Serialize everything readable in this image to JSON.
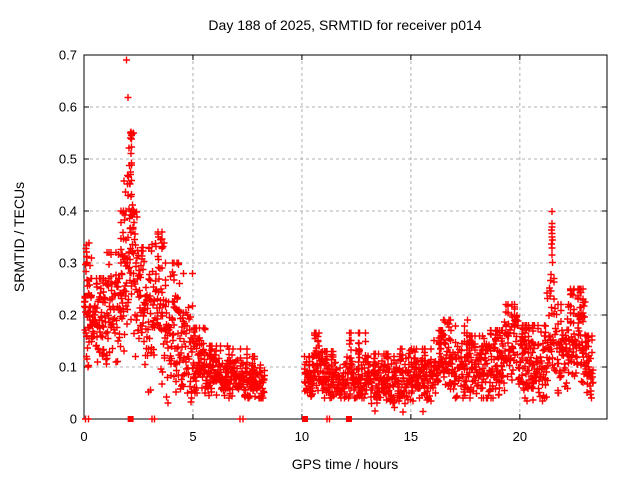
{
  "chart_data": {
    "type": "scatter",
    "title": "Day 188 of 2025, SRMTID for receiver p014",
    "xlabel": "GPS time / hours",
    "ylabel": "SRMTID / TECUs",
    "xlim": [
      0,
      24
    ],
    "ylim": [
      0,
      0.7
    ],
    "xticks": [
      0,
      5,
      10,
      15,
      20
    ],
    "xtick_labels": [
      "0",
      "5",
      "10",
      "15",
      "20"
    ],
    "yticks": [
      0,
      0.1,
      0.2,
      0.3,
      0.4,
      0.5,
      0.6,
      0.7
    ],
    "ytick_labels": [
      "0",
      "0.1",
      "0.2",
      "0.3",
      "0.4",
      "0.5",
      "0.6",
      "0.7"
    ],
    "grid": "dashed",
    "legend": "none",
    "marker": "plus",
    "marker_color": "#ff0000",
    "grid_color": "#b0b0b0",
    "axis_color": "#000000",
    "seed": 188,
    "band_format": [
      "x0_hours",
      "x1_hours",
      "n_points",
      "mean0",
      "mean1",
      "spread",
      "min",
      "max"
    ],
    "bands": [
      [
        0.02,
        0.32,
        46,
        0.21,
        0.2,
        0.06,
        0.1,
        0.335
      ],
      [
        0.32,
        0.92,
        50,
        0.185,
        0.175,
        0.035,
        0.11,
        0.27
      ],
      [
        0.92,
        1.55,
        55,
        0.19,
        0.2,
        0.05,
        0.1,
        0.32
      ],
      [
        1.55,
        1.95,
        40,
        0.22,
        0.27,
        0.06,
        0.12,
        0.4
      ],
      [
        1.95,
        2.52,
        60,
        0.3,
        0.25,
        0.08,
        0.1,
        0.55
      ],
      [
        2.52,
        3.05,
        50,
        0.22,
        0.2,
        0.06,
        0.05,
        0.33
      ],
      [
        3.05,
        3.7,
        60,
        0.22,
        0.21,
        0.07,
        0.04,
        0.36
      ],
      [
        3.7,
        4.35,
        55,
        0.17,
        0.15,
        0.055,
        0.03,
        0.3
      ],
      [
        4.35,
        5.0,
        55,
        0.125,
        0.11,
        0.05,
        0.04,
        0.28
      ],
      [
        5.0,
        5.6,
        50,
        0.1,
        0.095,
        0.03,
        0.05,
        0.175
      ],
      [
        5.6,
        6.6,
        85,
        0.085,
        0.08,
        0.022,
        0.04,
        0.14
      ],
      [
        6.6,
        7.6,
        85,
        0.08,
        0.075,
        0.022,
        0.04,
        0.135
      ],
      [
        7.6,
        8.3,
        60,
        0.075,
        0.07,
        0.02,
        0.04,
        0.12
      ],
      [
        10.12,
        10.55,
        38,
        0.075,
        0.075,
        0.02,
        0.04,
        0.12
      ],
      [
        10.55,
        10.9,
        30,
        0.1,
        0.09,
        0.03,
        0.05,
        0.165
      ],
      [
        10.9,
        12.05,
        95,
        0.075,
        0.075,
        0.022,
        0.04,
        0.13
      ],
      [
        12.05,
        13.0,
        80,
        0.085,
        0.08,
        0.028,
        0.04,
        0.165
      ],
      [
        13.0,
        14.5,
        120,
        0.07,
        0.07,
        0.022,
        0.025,
        0.125
      ],
      [
        14.5,
        16.0,
        120,
        0.072,
        0.08,
        0.024,
        0.03,
        0.135
      ],
      [
        16.0,
        16.45,
        38,
        0.09,
        0.11,
        0.03,
        0.05,
        0.17
      ],
      [
        16.45,
        16.95,
        42,
        0.12,
        0.1,
        0.035,
        0.05,
        0.19
      ],
      [
        16.95,
        17.65,
        55,
        0.085,
        0.09,
        0.03,
        0.04,
        0.19
      ],
      [
        17.65,
        18.3,
        55,
        0.09,
        0.09,
        0.032,
        0.04,
        0.16
      ],
      [
        18.3,
        19.3,
        85,
        0.09,
        0.1,
        0.035,
        0.04,
        0.17
      ],
      [
        19.3,
        19.95,
        55,
        0.13,
        0.14,
        0.04,
        0.06,
        0.22
      ],
      [
        19.95,
        21.3,
        110,
        0.1,
        0.09,
        0.035,
        0.035,
        0.18
      ],
      [
        21.3,
        21.7,
        28,
        0.14,
        0.14,
        0.05,
        0.06,
        0.27
      ],
      [
        21.7,
        22.3,
        50,
        0.115,
        0.13,
        0.04,
        0.05,
        0.22
      ],
      [
        22.3,
        23.0,
        60,
        0.15,
        0.14,
        0.04,
        0.07,
        0.25
      ],
      [
        23.0,
        23.35,
        30,
        0.1,
        0.07,
        0.03,
        0.04,
        0.16
      ]
    ],
    "points_extra": [
      [
        1.96,
        0.69
      ],
      [
        2.03,
        0.618
      ],
      [
        2.15,
        0.552
      ],
      [
        2.18,
        0.545
      ],
      [
        2.21,
        0.548
      ],
      [
        2.13,
        0.54
      ],
      [
        2.07,
        0.521
      ],
      [
        2.16,
        0.511
      ],
      [
        2.17,
        0.492
      ],
      [
        1.99,
        0.468
      ],
      [
        2.05,
        0.466
      ],
      [
        2.14,
        0.47
      ],
      [
        1.83,
        0.458
      ],
      [
        2.12,
        0.452
      ],
      [
        1.9,
        0.437
      ],
      [
        2.16,
        0.428
      ],
      [
        2.22,
        0.412
      ],
      [
        1.93,
        0.4
      ],
      [
        1.87,
        0.392
      ],
      [
        2.3,
        0.378
      ],
      [
        2.26,
        0.368
      ],
      [
        2.35,
        0.356
      ],
      [
        3.42,
        0.35
      ],
      [
        3.5,
        0.345
      ],
      [
        3.58,
        0.338
      ],
      [
        0.1,
        0.328
      ],
      [
        0.14,
        0.312
      ],
      [
        0.22,
        0.338
      ],
      [
        0.35,
        0.31
      ],
      [
        21.47,
        0.399
      ],
      [
        21.47,
        0.376
      ],
      [
        21.48,
        0.369
      ],
      [
        21.46,
        0.363
      ],
      [
        21.48,
        0.357
      ],
      [
        21.47,
        0.35
      ],
      [
        21.49,
        0.344
      ],
      [
        21.46,
        0.337
      ],
      [
        21.48,
        0.329
      ],
      [
        21.47,
        0.315
      ],
      [
        21.5,
        0.301
      ],
      [
        21.44,
        0.278
      ],
      [
        21.4,
        0.266
      ],
      [
        21.36,
        0.252
      ],
      [
        21.42,
        0.246
      ],
      [
        21.39,
        0.237
      ],
      [
        21.25,
        0.242
      ],
      [
        21.28,
        0.232
      ],
      [
        22.32,
        0.247
      ],
      [
        22.38,
        0.24
      ],
      [
        22.45,
        0.238
      ],
      [
        22.98,
        0.225
      ],
      [
        2.95,
        0.052
      ],
      [
        3.05,
        0.056
      ],
      [
        3.78,
        0.042
      ],
      [
        3.85,
        0.031
      ],
      [
        4.92,
        0.033
      ],
      [
        13.35,
        0.015
      ],
      [
        14.25,
        0.022
      ],
      [
        14.64,
        0.013
      ],
      [
        15.56,
        0.014
      ],
      [
        17.05,
        0.04
      ],
      [
        20.6,
        0.037
      ],
      [
        23.35,
        0.094
      ]
    ],
    "gap_squares_x": [
      2.14,
      10.14,
      12.16
    ],
    "gap_plus_x": [
      0.08,
      0.2,
      3.13,
      3.24,
      7.17,
      7.3,
      11.14,
      11.26
    ],
    "data_gap_hours": [
      8.3,
      10.12
    ]
  }
}
